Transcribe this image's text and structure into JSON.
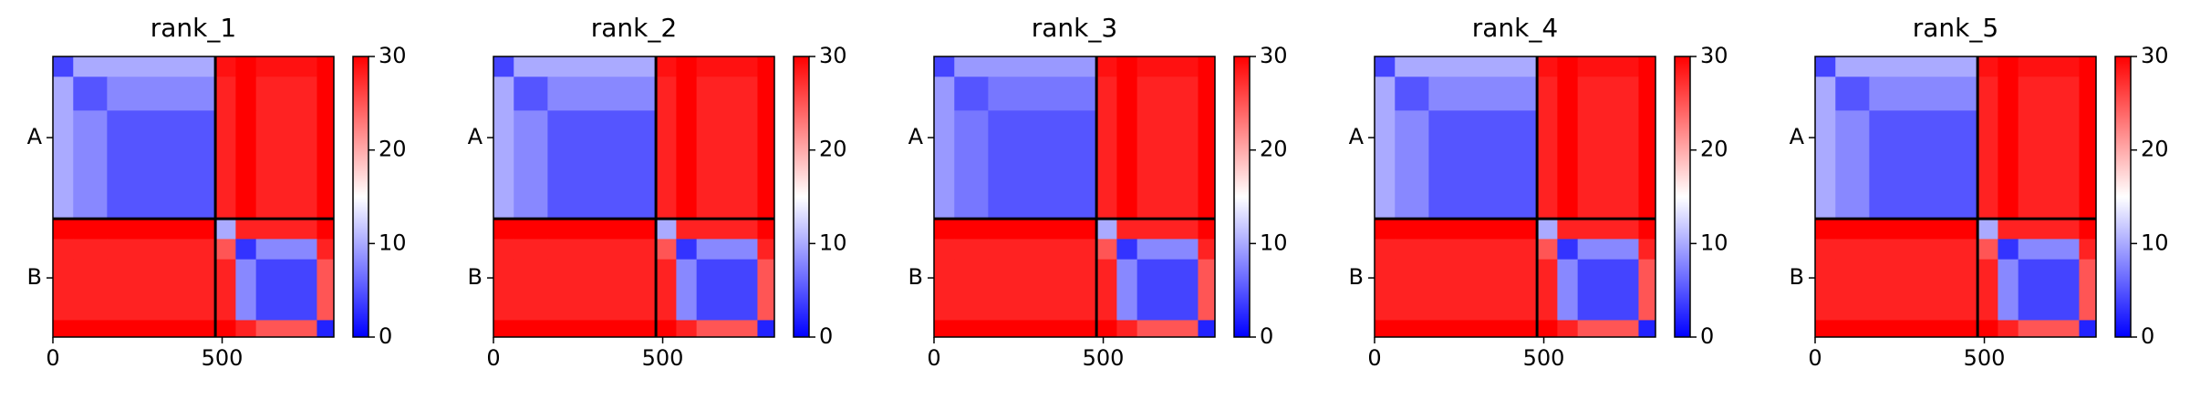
{
  "chart_data": [
    {
      "type": "heatmap",
      "title": "rank_1",
      "colormap": "bwr",
      "x_edges": [
        0,
        60,
        160,
        480,
        540,
        600,
        780,
        830
      ],
      "y_edges": [
        0,
        60,
        160,
        480,
        540,
        600,
        780,
        830
      ],
      "z": [
        [
          4,
          10,
          10,
          29,
          30,
          29,
          30
        ],
        [
          10,
          5,
          8,
          28,
          30,
          28,
          30
        ],
        [
          10,
          8,
          5,
          28,
          30,
          28,
          30
        ],
        [
          30,
          30,
          30,
          10,
          28,
          28,
          30
        ],
        [
          28,
          28,
          28,
          25,
          3,
          8,
          28
        ],
        [
          28,
          28,
          28,
          28,
          8,
          4,
          25
        ],
        [
          30,
          30,
          30,
          30,
          28,
          25,
          2
        ]
      ],
      "xlim": [
        0,
        830
      ],
      "ylim": [
        0,
        830
      ],
      "y_inverted": true,
      "xticks": [
        0,
        500
      ],
      "yticks": [
        {
          "value": 240,
          "label": "A"
        },
        {
          "value": 655,
          "label": "B"
        }
      ],
      "boundaries": [
        480
      ],
      "zlim": [
        0,
        30
      ],
      "zticks": [
        0,
        10,
        20,
        30
      ]
    },
    {
      "type": "heatmap",
      "title": "rank_2",
      "colormap": "bwr",
      "x_edges": [
        0,
        60,
        160,
        480,
        540,
        600,
        780,
        830
      ],
      "y_edges": [
        0,
        60,
        160,
        480,
        540,
        600,
        780,
        830
      ],
      "z": [
        [
          4,
          10,
          10,
          29,
          30,
          29,
          30
        ],
        [
          10,
          5,
          8,
          28,
          30,
          28,
          30
        ],
        [
          10,
          8,
          5,
          28,
          30,
          28,
          30
        ],
        [
          30,
          30,
          30,
          10,
          28,
          28,
          30
        ],
        [
          28,
          28,
          28,
          25,
          3,
          8,
          28
        ],
        [
          28,
          28,
          28,
          28,
          8,
          4,
          25
        ],
        [
          30,
          30,
          30,
          30,
          28,
          25,
          2
        ]
      ],
      "xlim": [
        0,
        830
      ],
      "ylim": [
        0,
        830
      ],
      "y_inverted": true,
      "xticks": [
        0,
        500
      ],
      "yticks": [
        {
          "value": 240,
          "label": "A"
        },
        {
          "value": 655,
          "label": "B"
        }
      ],
      "boundaries": [
        480
      ],
      "zlim": [
        0,
        30
      ],
      "zticks": [
        0,
        10,
        20,
        30
      ]
    },
    {
      "type": "heatmap",
      "title": "rank_3",
      "colormap": "bwr",
      "x_edges": [
        0,
        60,
        160,
        480,
        540,
        600,
        780,
        830
      ],
      "y_edges": [
        0,
        60,
        160,
        480,
        540,
        600,
        780,
        830
      ],
      "z": [
        [
          4,
          9,
          9,
          29,
          30,
          29,
          30
        ],
        [
          9,
          5,
          7,
          28,
          30,
          28,
          30
        ],
        [
          9,
          7,
          5,
          28,
          30,
          28,
          30
        ],
        [
          30,
          30,
          30,
          10,
          28,
          28,
          30
        ],
        [
          28,
          28,
          28,
          25,
          3,
          8,
          28
        ],
        [
          28,
          28,
          28,
          28,
          8,
          4,
          25
        ],
        [
          30,
          30,
          30,
          30,
          28,
          25,
          2
        ]
      ],
      "xlim": [
        0,
        830
      ],
      "ylim": [
        0,
        830
      ],
      "y_inverted": true,
      "xticks": [
        0,
        500
      ],
      "yticks": [
        {
          "value": 240,
          "label": "A"
        },
        {
          "value": 655,
          "label": "B"
        }
      ],
      "boundaries": [
        480
      ],
      "zlim": [
        0,
        30
      ],
      "zticks": [
        0,
        10,
        20,
        30
      ]
    },
    {
      "type": "heatmap",
      "title": "rank_4",
      "colormap": "bwr",
      "x_edges": [
        0,
        60,
        160,
        480,
        540,
        600,
        780,
        830
      ],
      "y_edges": [
        0,
        60,
        160,
        480,
        540,
        600,
        780,
        830
      ],
      "z": [
        [
          4,
          10,
          10,
          29,
          30,
          29,
          30
        ],
        [
          10,
          5,
          8,
          28,
          30,
          28,
          30
        ],
        [
          10,
          8,
          5,
          28,
          30,
          28,
          30
        ],
        [
          30,
          30,
          30,
          10,
          28,
          28,
          30
        ],
        [
          28,
          28,
          28,
          25,
          3,
          8,
          28
        ],
        [
          28,
          28,
          28,
          28,
          8,
          4,
          25
        ],
        [
          30,
          30,
          30,
          30,
          28,
          25,
          2
        ]
      ],
      "xlim": [
        0,
        830
      ],
      "ylim": [
        0,
        830
      ],
      "y_inverted": true,
      "xticks": [
        0,
        500
      ],
      "yticks": [
        {
          "value": 240,
          "label": "A"
        },
        {
          "value": 655,
          "label": "B"
        }
      ],
      "boundaries": [
        480
      ],
      "zlim": [
        0,
        30
      ],
      "zticks": [
        0,
        10,
        20,
        30
      ]
    },
    {
      "type": "heatmap",
      "title": "rank_5",
      "colormap": "bwr",
      "x_edges": [
        0,
        60,
        160,
        480,
        540,
        600,
        780,
        830
      ],
      "y_edges": [
        0,
        60,
        160,
        480,
        540,
        600,
        780,
        830
      ],
      "z": [
        [
          4,
          10,
          10,
          29,
          30,
          29,
          30
        ],
        [
          10,
          5,
          8,
          28,
          30,
          28,
          30
        ],
        [
          10,
          8,
          5,
          28,
          30,
          28,
          30
        ],
        [
          30,
          30,
          30,
          10,
          28,
          28,
          30
        ],
        [
          28,
          28,
          28,
          25,
          3,
          8,
          28
        ],
        [
          28,
          28,
          28,
          28,
          8,
          4,
          25
        ],
        [
          30,
          30,
          30,
          30,
          28,
          25,
          2
        ]
      ],
      "xlim": [
        0,
        830
      ],
      "ylim": [
        0,
        830
      ],
      "y_inverted": true,
      "xticks": [
        0,
        500
      ],
      "yticks": [
        {
          "value": 240,
          "label": "A"
        },
        {
          "value": 655,
          "label": "B"
        }
      ],
      "boundaries": [
        480
      ],
      "zlim": [
        0,
        30
      ],
      "zticks": [
        0,
        10,
        20,
        30
      ]
    }
  ]
}
